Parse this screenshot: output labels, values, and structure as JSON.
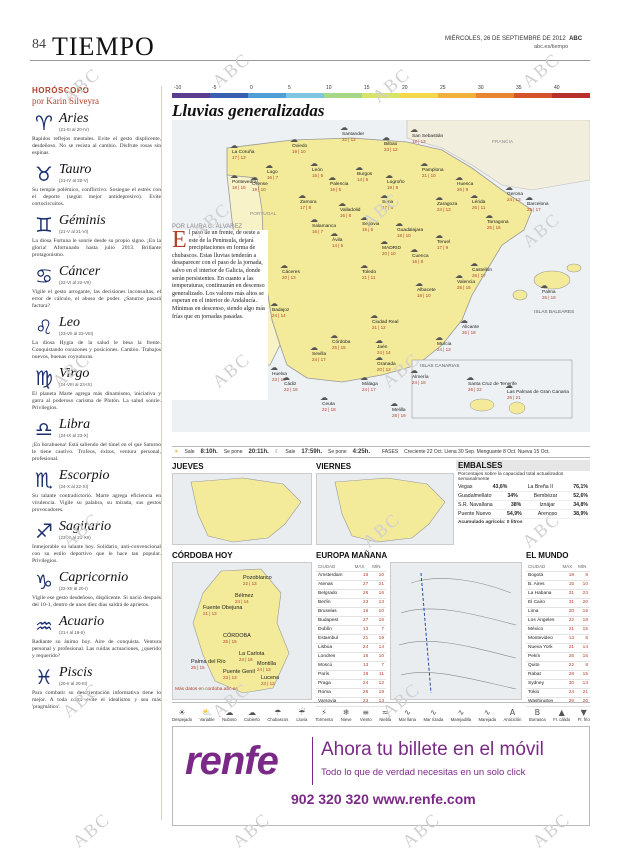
{
  "header": {
    "page_number": "84",
    "section": "TIEMPO",
    "date": "MIÉRCOLES, 26 DE SEPTIEMBRE DE 2012",
    "brand": "ABC",
    "web": "abc.es/tiempo"
  },
  "watermark": "ABC",
  "horoscope": {
    "label": "HORÓSCOPO",
    "author": "por Karin Silveyra",
    "signs": [
      {
        "glyph": "♈",
        "name": "Aries",
        "dates": "(21-III al 20-IV)",
        "text": "Rapidos reflejos mentales. Evite el gesto displicente, desdeñoso. No se resista al cambio. Disfrute rosas sin espinas."
      },
      {
        "glyph": "♉",
        "name": "Tauro",
        "dates": "(21-IV al 20-V)",
        "text": "Su temple polémico, conflictivo. Sosiegue el estrés con el deporte (según mejor antidepresivo). Evite cortocircuitos."
      },
      {
        "glyph": "♊",
        "name": "Géminis",
        "dates": "(21-V al 21-VI)",
        "text": "La diosa Fortuna le sonríe desde su propio signo. ¡En la gloria! Afortunado hasta julio 2013. Brillante protagonismo."
      },
      {
        "glyph": "♋",
        "name": "Cáncer",
        "dates": "(22-VI al 22-VII)",
        "text": "Vigile el gesto arrogante, las decisiones inconsultas, el error de cálculo, el abuso de poder. ¿Saturno pasará factura?"
      },
      {
        "glyph": "♌",
        "name": "Leo",
        "dates": "(23-VII al 23-VIII)",
        "text": "La diosa Hygía de la salud le besa la frente. Conquistando corazones y posiciones. Cambio. Trabajos nuevos, buenas coyunturas."
      },
      {
        "glyph": "♍",
        "name": "Virgo",
        "dates": "(24-VIII al 23-IX)",
        "text": "El planeta Marte agrega más dinamismo, iniciativa y garra al poderoso carisma de Plutón. La salud sonríe. Privilegios."
      },
      {
        "glyph": "♎",
        "name": "Libra",
        "dates": "(24-IX al 23-X)",
        "text": "¡En horabuena! Está saliendo del túnel en el que Saturno le tiene cautivo. Trofeos, éxitos, ventura personal, profesional."
      },
      {
        "glyph": "♏",
        "name": "Escorpio",
        "dates": "(24-X al 22-XI)",
        "text": "Su talante contradictorio. Marte agrega eficiencia en virulencia. Vigile su palabra, su mirada, sus gestos provocadores."
      },
      {
        "glyph": "♐",
        "name": "Sagitario",
        "dates": "(23-XI al 21-XII)",
        "text": "Inmejorable su talante hoy. Solidario, anti-convencional con su estilo deportivo que le hace tan popular. Privilegios."
      },
      {
        "glyph": "♑",
        "name": "Capricornio",
        "dates": "(22-XII al 20-I)",
        "text": "Vigile ese gesto desdeñoso, displicente. Si nació después del 10-1, dentro de unos diez días saldrá de aprietos."
      },
      {
        "glyph": "♒",
        "name": "Acuario",
        "dates": "(21-I al 19-II)",
        "text": "Radiante su ánimo hoy. Aire de conquista. Ventura personal y profesional. Las ruidas actuaciones, ¿querido y requerido?"
      },
      {
        "glyph": "♓",
        "name": "Piscis",
        "dates": "(20-II al 20-III)",
        "text": "Para combatir su desorientación informativa tiene lo mejor. A toda costa evite el idealismo y sea más 'pragmático'."
      }
    ]
  },
  "scale": {
    "labels": [
      "-10",
      "-5",
      "0",
      "5",
      "10",
      "15",
      "20",
      "25",
      "30",
      "35",
      "40"
    ],
    "colors": [
      "#5a3d8e",
      "#3a5fb0",
      "#4f9fd6",
      "#7cc6e0",
      "#a7d88a",
      "#d8e36a",
      "#f2d84a",
      "#f2b13a",
      "#e9852e",
      "#d5532a",
      "#b8302a"
    ]
  },
  "map": {
    "title": "Lluvias generalizadas",
    "country_labels": [
      "FRANCIA",
      "PORTUGAL",
      "ISLAS BALEARES",
      "ISLAS CANARIAS"
    ],
    "cities": [
      {
        "name": "La Coruña",
        "t": "17 | 13"
      },
      {
        "name": "Oviedo",
        "t": "19 | 10"
      },
      {
        "name": "Santander",
        "t": "22 | 12"
      },
      {
        "name": "Bilbao",
        "t": "23 | 12"
      },
      {
        "name": "San Sebastián",
        "t": "19 | 13"
      },
      {
        "name": "Lugo",
        "t": "16 | 7"
      },
      {
        "name": "León",
        "t": "15 | 5"
      },
      {
        "name": "Pamplona",
        "t": "21 | 10"
      },
      {
        "name": "Huesca",
        "t": "26 | 9"
      },
      {
        "name": "Gerona",
        "t": "24 | 13"
      },
      {
        "name": "Pontevedra",
        "t": "18 | 15"
      },
      {
        "name": "Orense",
        "t": "19 | 10"
      },
      {
        "name": "Burgos",
        "t": "14 | 5"
      },
      {
        "name": "Logroño",
        "t": "19 | 9"
      },
      {
        "name": "Lérida",
        "t": "26 | 11"
      },
      {
        "name": "Zaragoza",
        "t": "24 | 13"
      },
      {
        "name": "Palencia",
        "t": "16 | 5"
      },
      {
        "name": "Zamora",
        "t": "17 | 8"
      },
      {
        "name": "Valladolid",
        "t": "16 | 8"
      },
      {
        "name": "Soria",
        "t": "17 | 6"
      },
      {
        "name": "Tarragona",
        "t": "25 | 15"
      },
      {
        "name": "Barcelona",
        "t": "25 | 17"
      },
      {
        "name": "Salamanca",
        "t": "16 | 7"
      },
      {
        "name": "Segovia",
        "t": "15 | 6"
      },
      {
        "name": "Guadalajara",
        "t": "18 | 10"
      },
      {
        "name": "Teruel",
        "t": "17 | 9"
      },
      {
        "name": "Ávila",
        "t": "14 | 5"
      },
      {
        "name": "MADRID",
        "t": "20 | 10"
      },
      {
        "name": "Cuenca",
        "t": "16 | 8"
      },
      {
        "name": "Castellón",
        "t": "26 | 17"
      },
      {
        "name": "Palma",
        "t": "26 | 18"
      },
      {
        "name": "Cáceres",
        "t": "20 | 13"
      },
      {
        "name": "Toledo",
        "t": "21 | 11"
      },
      {
        "name": "Valencia",
        "t": "25 | 15"
      },
      {
        "name": "Albacete",
        "t": "18 | 10"
      },
      {
        "name": "Badajoz",
        "t": "24 | 14"
      },
      {
        "name": "Ciudad Real",
        "t": "21 | 12"
      },
      {
        "name": "Alicante",
        "t": "26 | 18"
      },
      {
        "name": "Córdoba",
        "t": "25 | 15"
      },
      {
        "name": "Jaén",
        "t": "24 | 14"
      },
      {
        "name": "Murcia",
        "t": "24 | 13"
      },
      {
        "name": "Huelva",
        "t": "23 | 18"
      },
      {
        "name": "Sevilla",
        "t": "24 | 17"
      },
      {
        "name": "Granada",
        "t": "20 | 12"
      },
      {
        "name": "Almería",
        "t": "24 | 18"
      },
      {
        "name": "Cádiz",
        "t": "22 | 18"
      },
      {
        "name": "Málaga",
        "t": "24 | 17"
      },
      {
        "name": "Ceuta",
        "t": "22 | 18"
      },
      {
        "name": "Melilla",
        "t": "28 | 19"
      },
      {
        "name": "Santa Cruz de Tenerife",
        "t": "26 | 22"
      },
      {
        "name": "Las Palmas de Gran Canaria",
        "t": "26 | 21"
      }
    ]
  },
  "article": {
    "byline": "POR LAURA C. ÁLVAREZ",
    "dropcap": "E",
    "text": "l paso de un frente, de oeste a este de la Península, dejará precipitaciones en forma de chubascos. Estas lluvias tenderán a desaparecer con el paso de la jornada, salvo en el interior de Galicia, donde serán persistentes. En cuanto a las temperaturas, continuarán en descenso generalizado. Los valores más altos se esperan en el interior de Andalucía. Mínimas en descenso, siendo algo más frías que en jornadas pasadas."
  },
  "sun_strip": {
    "sale_label": "Sale",
    "sale": "8:10h.",
    "pone_label": "Se pone",
    "pone": "20:11h.",
    "luna_sale_label": "Sale",
    "luna_sale": "17:59h.",
    "luna_pone_label": "Se pone",
    "luna_pone": "4:25h.",
    "phases_label": "FASES",
    "phases": "Creciente 22 Oct.  Llena 30 Sep.  Menguante 8 Oct.  Nueva 15 Oct."
  },
  "jueves": {
    "title": "JUEVES"
  },
  "viernes": {
    "title": "VIERNES"
  },
  "embalses": {
    "title": "EMBALSES",
    "subtitle": "Porcentajes sobre la capacidad total actualizados semanalmente",
    "rows": [
      {
        "l": "Vegas",
        "lv": "43,6%",
        "r": "La Breña II",
        "rv": "76,1%"
      },
      {
        "l": "Guadalmellato",
        "lv": "34%",
        "r": "Bembézar",
        "rv": "52,6%"
      },
      {
        "l": "S.R. Navallana",
        "lv": "38%",
        "r": "Iznájar",
        "rv": "34,8%"
      },
      {
        "l": "Puente Nuevo",
        "lv": "54,9%",
        "r": "Arenoso",
        "rv": "38,9%"
      }
    ],
    "footer": "Acumulado agrícola: 0 litros"
  },
  "cordoba": {
    "title": "CÓRDOBA HOY",
    "places": [
      {
        "name": "Pozoblanco",
        "t": "22 | 13"
      },
      {
        "name": "Bélmez",
        "t": "24 | 14"
      },
      {
        "name": "Fuente Obejuna",
        "t": "21 | 13"
      },
      {
        "name": "CÓRDOBA",
        "t": "25 | 15"
      },
      {
        "name": "La Carlota",
        "t": "24 | 16"
      },
      {
        "name": "Palma del Río",
        "t": "25 | 15"
      },
      {
        "name": "Montilla",
        "t": "24 | 13"
      },
      {
        "name": "Puente Genil",
        "t": "23 | 13"
      },
      {
        "name": "Lucena",
        "t": "23 | 12"
      }
    ],
    "footer": "Más datos en cordoba.abc.es"
  },
  "europa": {
    "title": "EUROPA MAÑANA",
    "headers": [
      "CIUDAD",
      "MÁX",
      "MÍN"
    ],
    "rows": [
      [
        "Ámsterdam",
        "16",
        "10"
      ],
      [
        "Atenas",
        "27",
        "21"
      ],
      [
        "Belgrado",
        "26",
        "16"
      ],
      [
        "Berlín",
        "23",
        "13"
      ],
      [
        "Bruselas",
        "16",
        "10"
      ],
      [
        "Budapest",
        "27",
        "16"
      ],
      [
        "Dublín",
        "13",
        "7"
      ],
      [
        "Estambul",
        "21",
        "19"
      ],
      [
        "Lisboa",
        "24",
        "14"
      ],
      [
        "Londres",
        "16",
        "10"
      ],
      [
        "Moscú",
        "13",
        "7"
      ],
      [
        "París",
        "18",
        "11"
      ],
      [
        "Praga",
        "24",
        "12"
      ],
      [
        "Roma",
        "26",
        "19"
      ],
      [
        "Varsovia",
        "23",
        "13"
      ]
    ]
  },
  "mundo": {
    "title": "EL MUNDO",
    "headers": [
      "CIUDAD",
      "MÁX",
      "MÍN"
    ],
    "rows": [
      [
        "Bogotá",
        "18",
        "8"
      ],
      [
        "B. Aires",
        "15",
        "10"
      ],
      [
        "La Habana",
        "31",
        "23"
      ],
      [
        "El Cairo",
        "31",
        "20"
      ],
      [
        "Lima",
        "20",
        "16"
      ],
      [
        "Los Ángeles",
        "22",
        "18"
      ],
      [
        "México",
        "21",
        "15"
      ],
      [
        "Montevideo",
        "13",
        "5"
      ],
      [
        "Nueva York",
        "21",
        "14"
      ],
      [
        "Pekín",
        "26",
        "16"
      ],
      [
        "Quito",
        "22",
        "8"
      ],
      [
        "Rabat",
        "28",
        "15"
      ],
      [
        "Sydney",
        "30",
        "13"
      ],
      [
        "Tokio",
        "24",
        "21"
      ],
      [
        "Washington",
        "26",
        "20"
      ]
    ]
  },
  "legend": [
    {
      "icon": "☀",
      "label": "Despejado"
    },
    {
      "icon": "⛅",
      "label": "Variable"
    },
    {
      "icon": "☁",
      "label": "Nuboso"
    },
    {
      "icon": "☁",
      "label": "Cubierto"
    },
    {
      "icon": "☂",
      "label": "Chubascos"
    },
    {
      "icon": "☔",
      "label": "Lluvia"
    },
    {
      "icon": "⚡",
      "label": "Tormenta"
    },
    {
      "icon": "❄",
      "label": "Nieve"
    },
    {
      "icon": "≡",
      "label": "Viento"
    },
    {
      "icon": "≈",
      "label": "Niebla"
    },
    {
      "icon": "∿",
      "label": "Mar llana"
    },
    {
      "icon": "∿",
      "label": "Mar rizada"
    },
    {
      "icon": "∿",
      "label": "Marejadilla"
    },
    {
      "icon": "∿",
      "label": "Marejada"
    },
    {
      "icon": "A",
      "label": "Anticiclón"
    },
    {
      "icon": "B",
      "label": "Borrasca"
    },
    {
      "icon": "▲",
      "label": "Fr. cálido"
    },
    {
      "icon": "▼",
      "label": "Fr. frío"
    }
  ],
  "ad": {
    "brand": "renfe",
    "headline": "Ahora tu billete en el móvil",
    "subline": "Todo lo que de verdad necesitas en un solo click",
    "contact": "902 320 320  www.renfe.com"
  }
}
